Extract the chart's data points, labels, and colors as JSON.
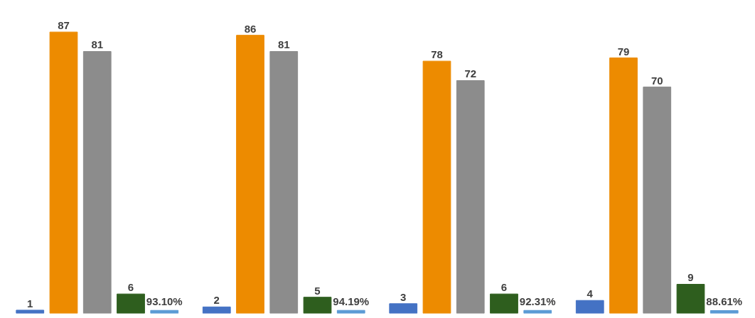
{
  "chart_data": {
    "type": "bar",
    "categories": [
      null,
      null,
      null,
      null
    ],
    "tick_labels": false,
    "series": [
      {
        "color": "#4472c4",
        "values": [
          1,
          2,
          3,
          4
        ],
        "value_labels": [
          "1",
          "2",
          "3",
          "4"
        ]
      },
      {
        "color": "#ed8b00",
        "values": [
          87,
          86,
          78,
          79
        ],
        "value_labels": [
          "87",
          "86",
          "78",
          "79"
        ]
      },
      {
        "color": "#8c8c8c",
        "values": [
          81,
          81,
          72,
          70
        ],
        "value_labels": [
          "81",
          "81",
          "72",
          "70"
        ]
      },
      {
        "color": "#2e5e1e",
        "values": [
          6,
          5,
          6,
          9
        ],
        "value_labels": [
          "6",
          "5",
          "6",
          "9"
        ]
      },
      {
        "color": "#5b9bd5",
        "values": [
          0.931,
          0.9419,
          0.9231,
          0.8861
        ],
        "value_labels": [
          "93.10%",
          "94.19%",
          "92.31%",
          "88.61%"
        ]
      }
    ]
  }
}
